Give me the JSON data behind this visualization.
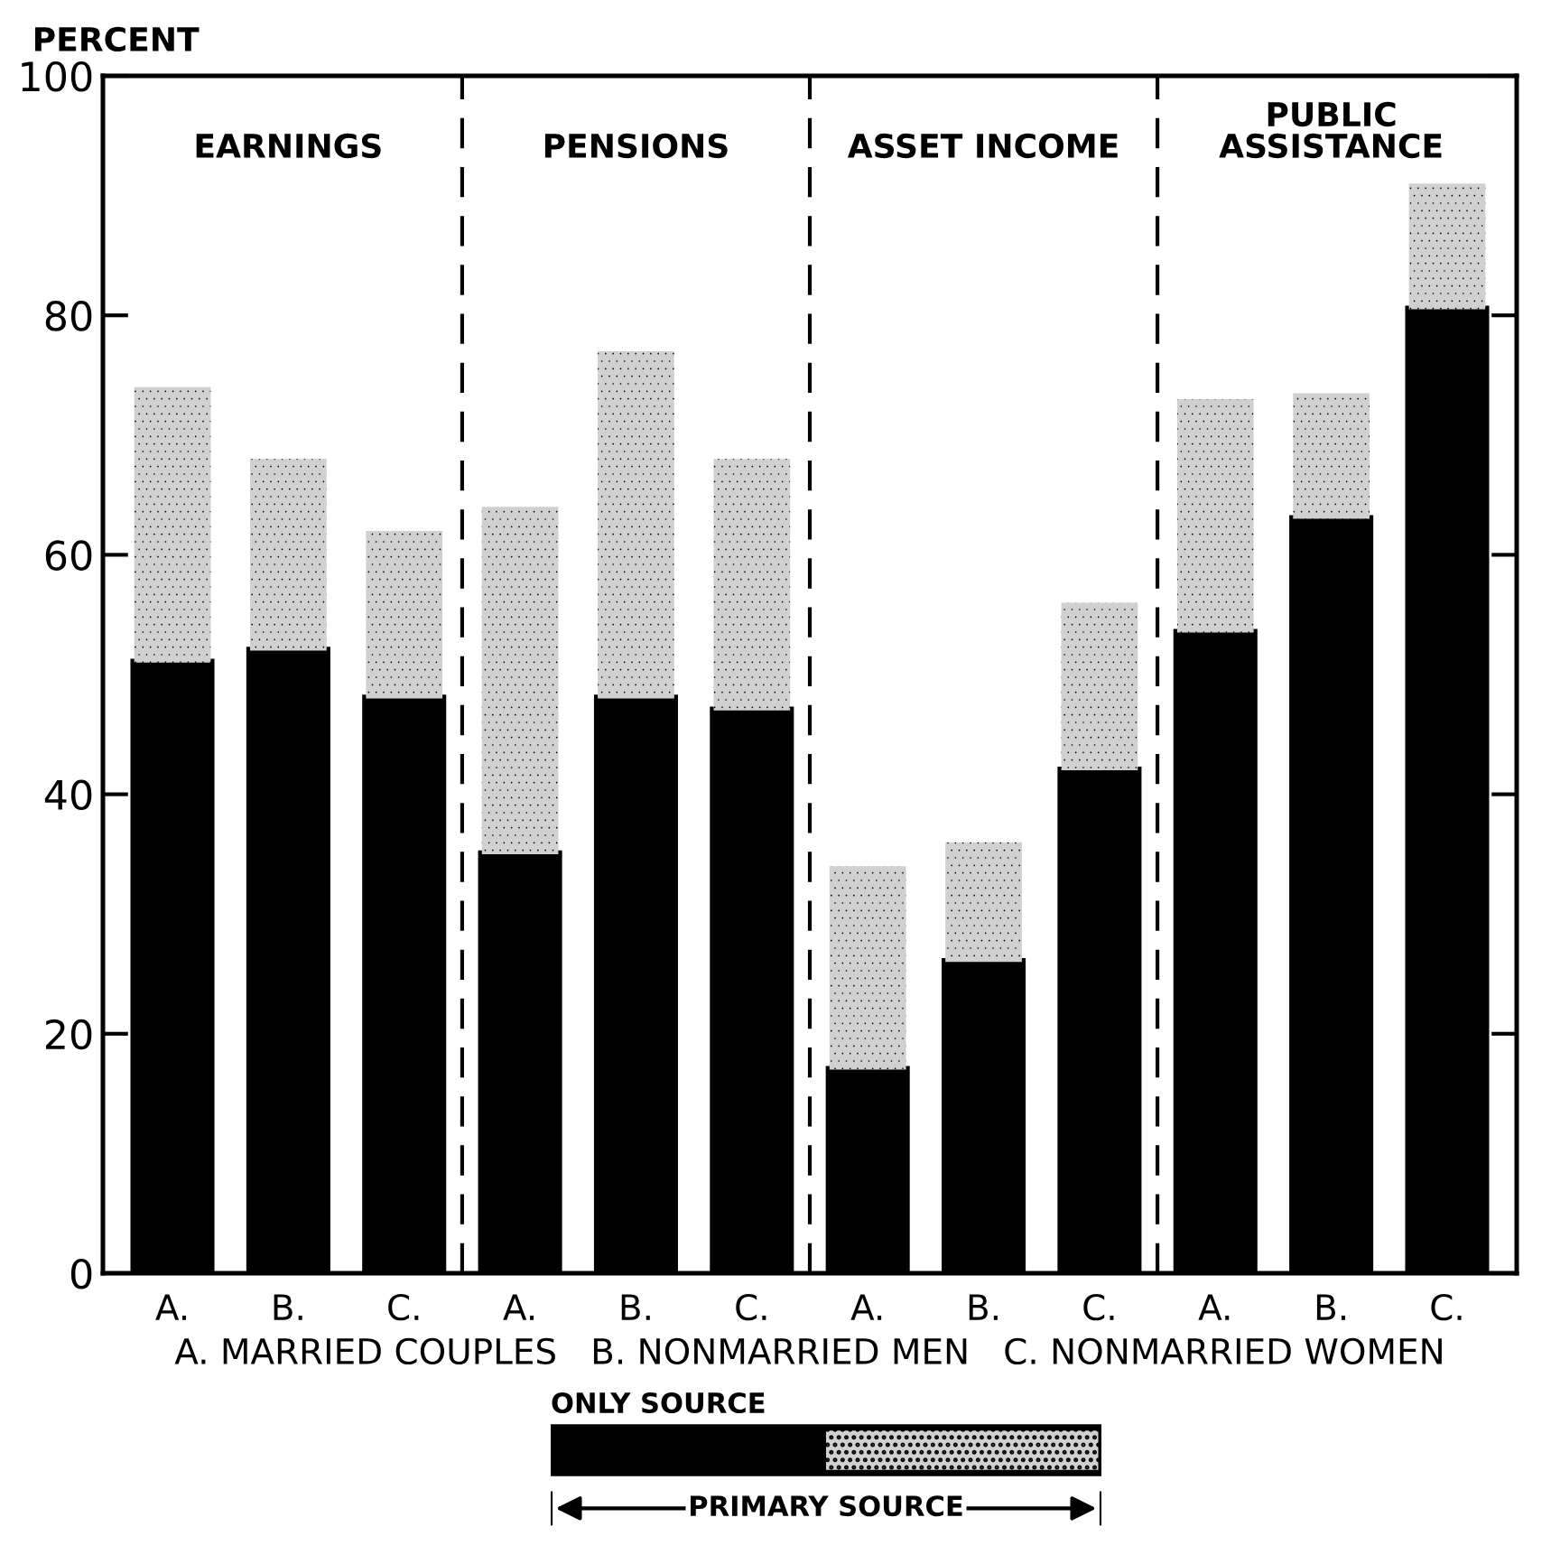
{
  "chart_data": {
    "type": "bar",
    "stacked": true,
    "categories": [
      "A.",
      "B.",
      "C.",
      "A.",
      "B.",
      "C.",
      "A.",
      "B.",
      "C.",
      "A.",
      "B.",
      "C."
    ],
    "series": [
      {
        "name": "ONLY SOURCE",
        "color": "#000000",
        "values": [
          51,
          52,
          48,
          35,
          48,
          47,
          17,
          26,
          42,
          53.5,
          63,
          80.5
        ]
      },
      {
        "color": "#d0d0d0",
        "values": [
          23,
          16,
          14,
          29,
          29,
          21,
          17,
          10,
          14,
          19.5,
          10.5,
          10.5
        ]
      }
    ],
    "ylabel": "PERCENT",
    "xlabel": "A. MARRIED COUPLES   B. NONMARRIED MEN   C. NONMARRIED WOMEN",
    "ylim": [
      0,
      100
    ],
    "yticks": [
      0,
      20,
      40,
      60,
      80,
      100
    ],
    "annotations": [
      "EARNINGS",
      "PENSIONS",
      "ASSET INCOME",
      "PUBLIC\nASSISTANCE",
      "PRIMARY SOURCE"
    ],
    "legend": "bottom"
  }
}
